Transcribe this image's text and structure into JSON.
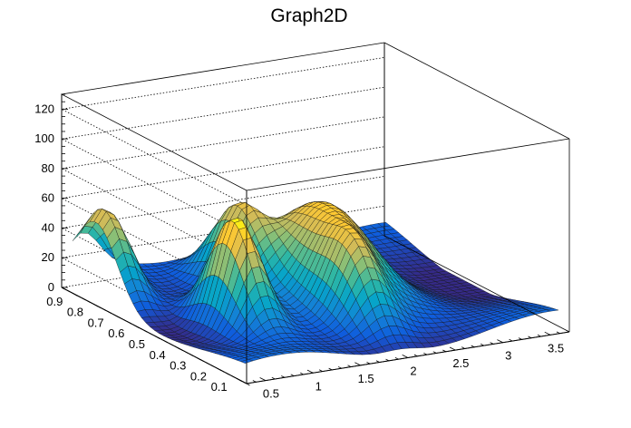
{
  "chart_data": {
    "type": "surface",
    "title": "Graph2D",
    "xlabel": "",
    "ylabel": "",
    "zlabel": "",
    "xlim": [
      0.3,
      3.7
    ],
    "ylim": [
      0.05,
      0.95
    ],
    "zlim": [
      0,
      130
    ],
    "x_ticks": [
      "0.5",
      "1",
      "1.5",
      "2",
      "2.5",
      "3",
      "3.5"
    ],
    "y_ticks": [
      "0.1",
      "0.2",
      "0.3",
      "0.4",
      "0.5",
      "0.6",
      "0.7",
      "0.8",
      "0.9"
    ],
    "z_ticks": [
      "0",
      "20",
      "40",
      "60",
      "80",
      "100",
      "120"
    ],
    "grid": true,
    "colormap": [
      "#352a87",
      "#0f5cdd",
      "#1481d6",
      "#06a4ca",
      "#2eb7a4",
      "#87bf77",
      "#d1bb59",
      "#fec832",
      "#f9fb0e"
    ],
    "peaks": [
      {
        "x": 1.05,
        "y": 0.45,
        "z": 75
      },
      {
        "x": 0.45,
        "y": 0.8,
        "z": 55
      },
      {
        "x": 2.2,
        "y": 0.55,
        "z": 52
      },
      {
        "x": 2.0,
        "y": 0.3,
        "z": 35
      },
      {
        "x": 1.6,
        "y": 0.7,
        "z": 45
      }
    ]
  }
}
